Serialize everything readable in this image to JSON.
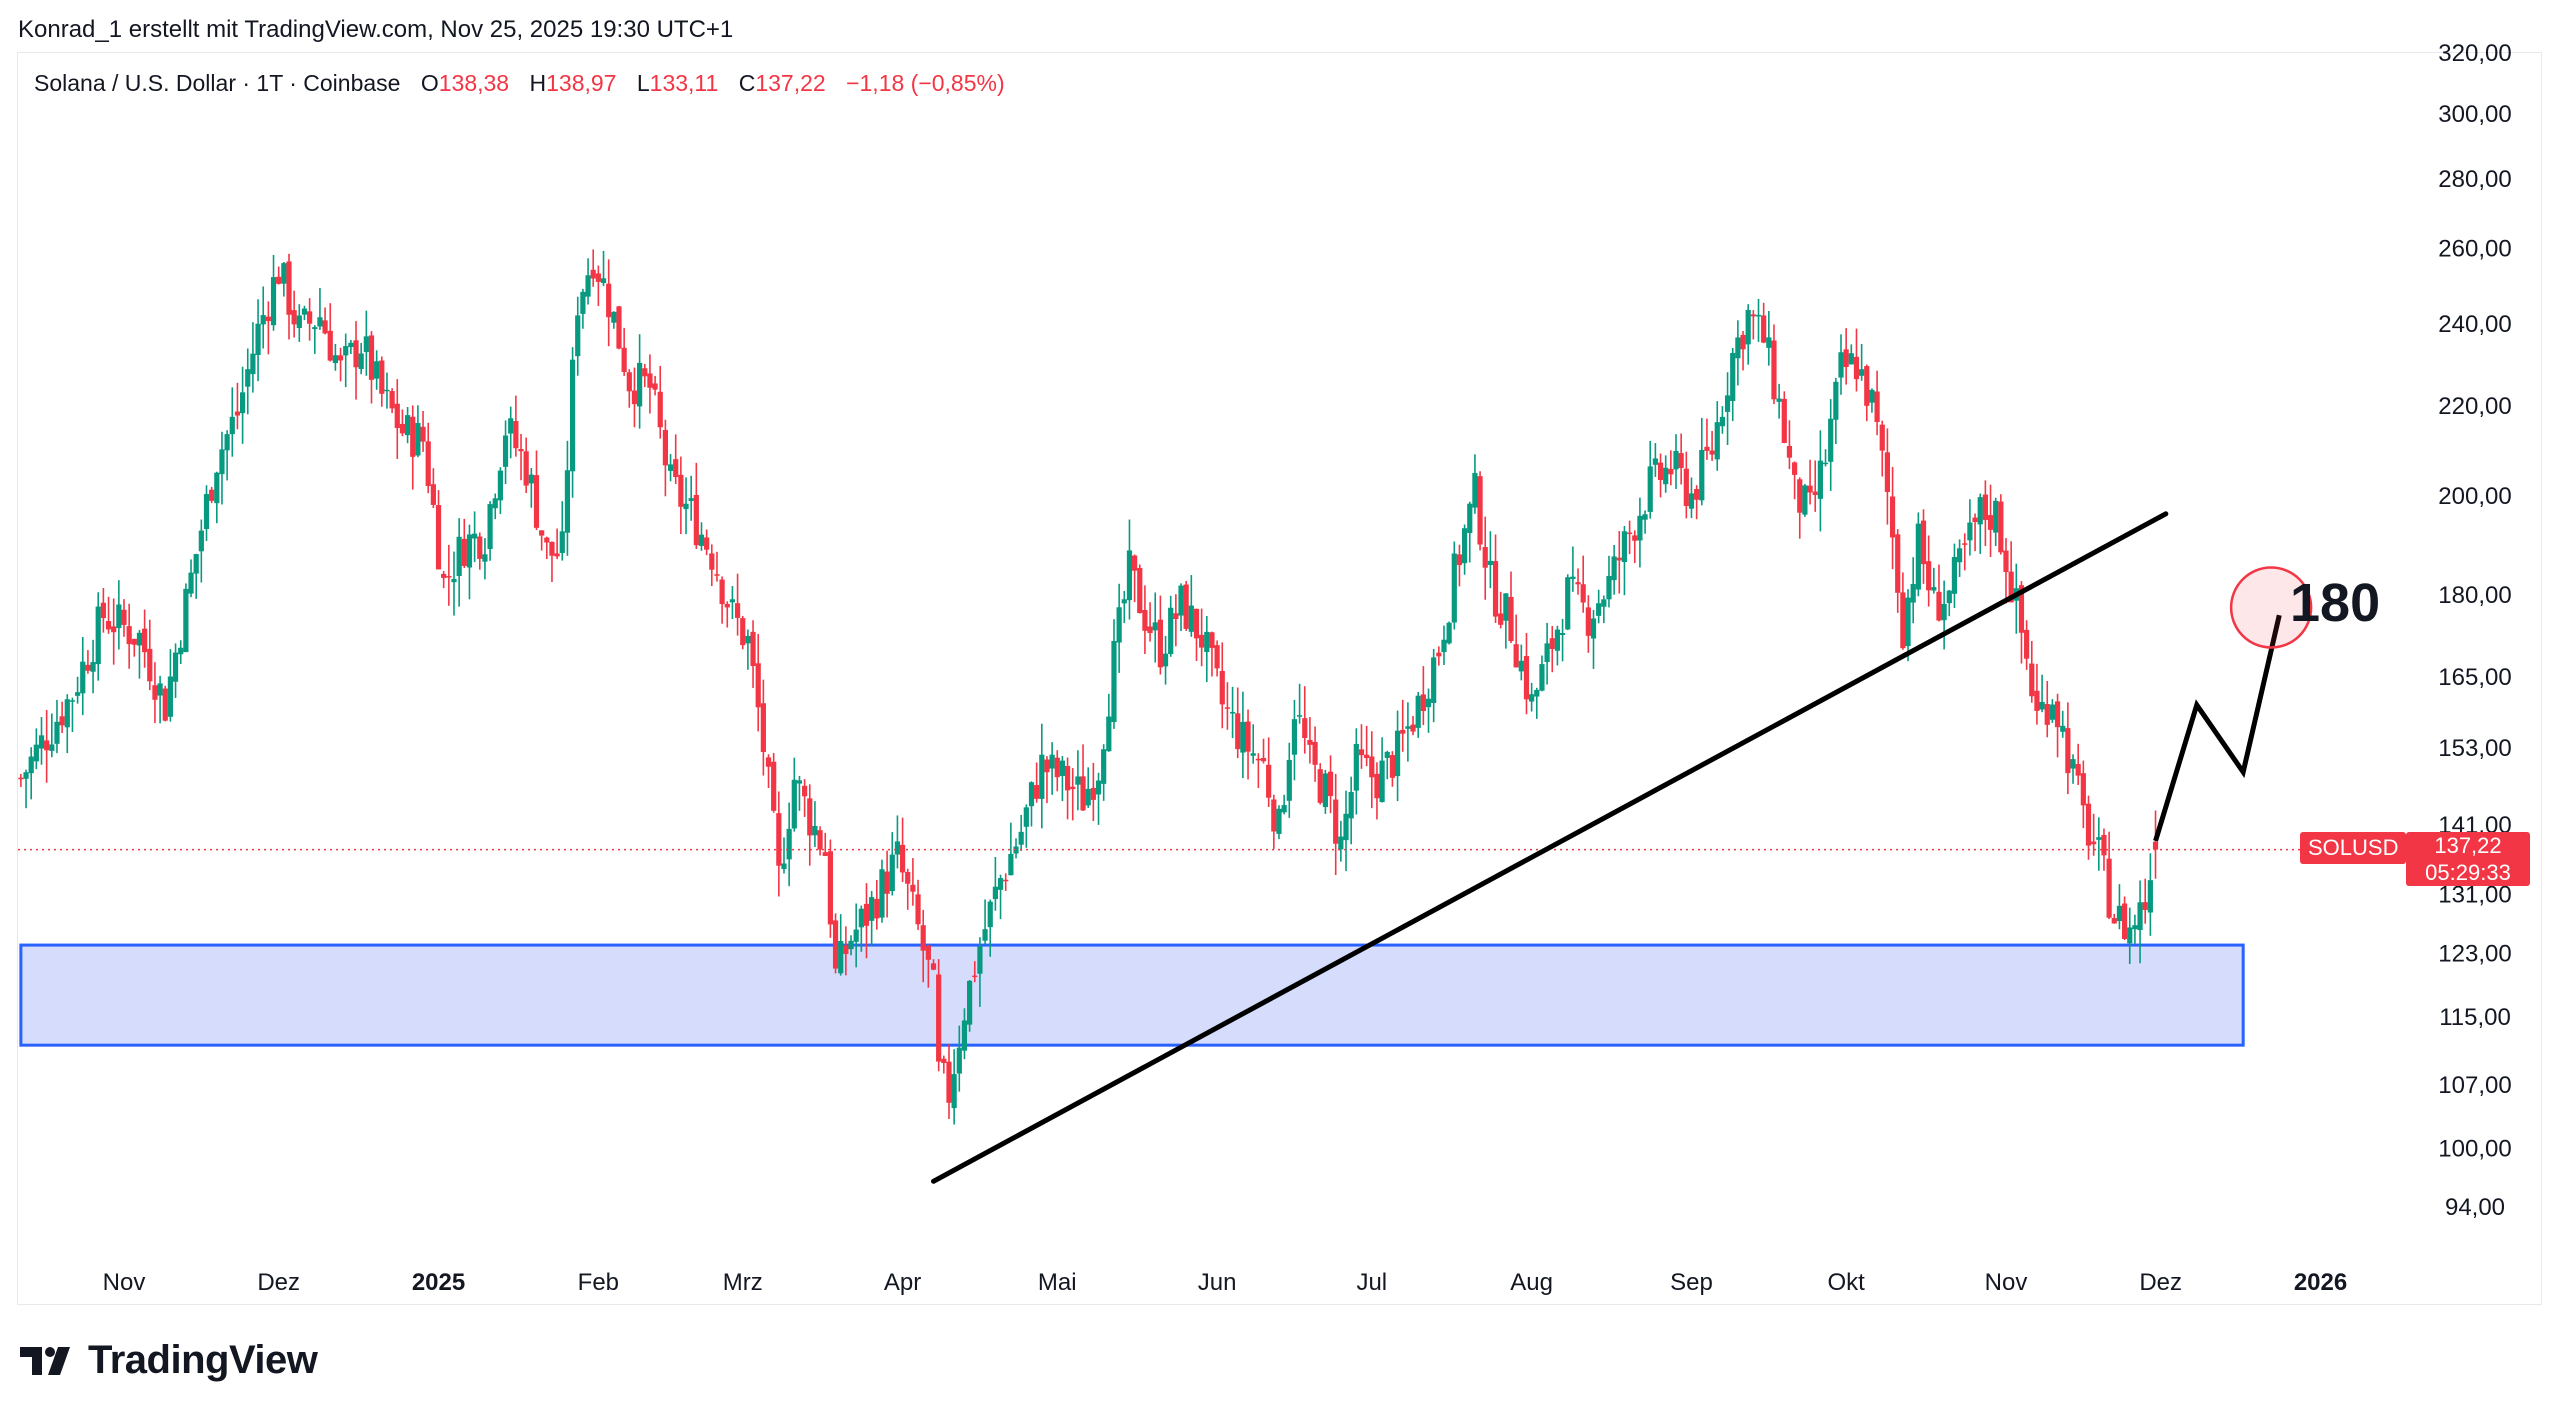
{
  "header": {
    "credit": "Konrad_1 erstellt mit TradingView.com, Nov 25, 2025 19:30 UTC+1"
  },
  "legend": {
    "title": "Solana / U.S. Dollar · 1T · Coinbase",
    "open_label": "O",
    "open": "138,38",
    "high_label": "H",
    "high": "138,97",
    "low_label": "L",
    "low": "133,11",
    "close_label": "C",
    "close": "137,22",
    "change": "−1,18 (−0,85%)"
  },
  "price_badge": {
    "symbol": "SOLUSD",
    "price": "137,22",
    "countdown": "05:29:33"
  },
  "annotation": {
    "target": "180"
  },
  "branding": {
    "logo_text": "TradingView"
  },
  "colors": {
    "up": "#089981",
    "down": "#f23645",
    "zone_fill": "#d6dcfb",
    "zone_border": "#2962ff",
    "line": "#000000"
  },
  "chart_data": {
    "type": "candlestick",
    "title": "Solana / U.S. Dollar · 1T · Coinbase",
    "scale": "log",
    "ylim": [
      88,
      322
    ],
    "y_ticks": [
      {
        "value": 320,
        "label": "320,00"
      },
      {
        "value": 300,
        "label": "300,00"
      },
      {
        "value": 280,
        "label": "280,00"
      },
      {
        "value": 260,
        "label": "260,00"
      },
      {
        "value": 240,
        "label": "240,00"
      },
      {
        "value": 220,
        "label": "220,00"
      },
      {
        "value": 200,
        "label": "200,00"
      },
      {
        "value": 180,
        "label": "180,00"
      },
      {
        "value": 165,
        "label": "165,00"
      },
      {
        "value": 153,
        "label": "153,00"
      },
      {
        "value": 141,
        "label": "141,00"
      },
      {
        "value": 131,
        "label": "131,00"
      },
      {
        "value": 123,
        "label": "123,00"
      },
      {
        "value": 115,
        "label": "115,00"
      },
      {
        "value": 107,
        "label": "107,00"
      },
      {
        "value": 100,
        "label": "100,00"
      },
      {
        "value": 94,
        "label": "94,00"
      }
    ],
    "x_ticks": [
      {
        "day": 0,
        "label": "Nov",
        "bold": false
      },
      {
        "day": 30,
        "label": "Dez",
        "bold": false
      },
      {
        "day": 61,
        "label": "2025",
        "bold": true
      },
      {
        "day": 92,
        "label": "Feb",
        "bold": false
      },
      {
        "day": 120,
        "label": "Mrz",
        "bold": false
      },
      {
        "day": 151,
        "label": "Apr",
        "bold": false
      },
      {
        "day": 181,
        "label": "Mai",
        "bold": false
      },
      {
        "day": 212,
        "label": "Jun",
        "bold": false
      },
      {
        "day": 242,
        "label": "Jul",
        "bold": false
      },
      {
        "day": 273,
        "label": "Aug",
        "bold": false
      },
      {
        "day": 304,
        "label": "Sep",
        "bold": false
      },
      {
        "day": 334,
        "label": "Okt",
        "bold": false
      },
      {
        "day": 365,
        "label": "Nov",
        "bold": false
      },
      {
        "day": 395,
        "label": "Dez",
        "bold": false
      },
      {
        "day": 426,
        "label": "2026",
        "bold": true
      }
    ],
    "x_domain": [
      -20,
      450
    ],
    "close_anchors": [
      [
        -20,
        148
      ],
      [
        -10,
        162
      ],
      [
        -4,
        176
      ],
      [
        3,
        172
      ],
      [
        8,
        160
      ],
      [
        13,
        183
      ],
      [
        18,
        208
      ],
      [
        22,
        218
      ],
      [
        26,
        238
      ],
      [
        30,
        254
      ],
      [
        34,
        238
      ],
      [
        38,
        242
      ],
      [
        42,
        228
      ],
      [
        46,
        235
      ],
      [
        50,
        222
      ],
      [
        54,
        214
      ],
      [
        58,
        212
      ],
      [
        62,
        182
      ],
      [
        66,
        190
      ],
      [
        70,
        192
      ],
      [
        74,
        215
      ],
      [
        78,
        206
      ],
      [
        82,
        188
      ],
      [
        85,
        188
      ],
      [
        88,
        246
      ],
      [
        91,
        258
      ],
      [
        94,
        246
      ],
      [
        98,
        226
      ],
      [
        102,
        224
      ],
      [
        106,
        202
      ],
      [
        110,
        196
      ],
      [
        114,
        188
      ],
      [
        118,
        176
      ],
      [
        121,
        171
      ],
      [
        124,
        153
      ],
      [
        127,
        133
      ],
      [
        130,
        148
      ],
      [
        133,
        142
      ],
      [
        136,
        137
      ],
      [
        138,
        120
      ],
      [
        141,
        125
      ],
      [
        144,
        128
      ],
      [
        147,
        132
      ],
      [
        150,
        136
      ],
      [
        154,
        126
      ],
      [
        157,
        118
      ],
      [
        158,
        108
      ],
      [
        160,
        106
      ],
      [
        163,
        116
      ],
      [
        166,
        124
      ],
      [
        170,
        133
      ],
      [
        174,
        140
      ],
      [
        178,
        150
      ],
      [
        182,
        148
      ],
      [
        186,
        145
      ],
      [
        189,
        150
      ],
      [
        192,
        168
      ],
      [
        195,
        184
      ],
      [
        198,
        176
      ],
      [
        201,
        170
      ],
      [
        205,
        178
      ],
      [
        209,
        172
      ],
      [
        213,
        160
      ],
      [
        217,
        154
      ],
      [
        221,
        150
      ],
      [
        224,
        140
      ],
      [
        227,
        160
      ],
      [
        230,
        150
      ],
      [
        233,
        146
      ],
      [
        236,
        138
      ],
      [
        239,
        150
      ],
      [
        243,
        148
      ],
      [
        247,
        152
      ],
      [
        251,
        160
      ],
      [
        255,
        170
      ],
      [
        259,
        188
      ],
      [
        262,
        200
      ],
      [
        265,
        182
      ],
      [
        269,
        174
      ],
      [
        273,
        160
      ],
      [
        276,
        168
      ],
      [
        280,
        180
      ],
      [
        284,
        176
      ],
      [
        288,
        182
      ],
      [
        292,
        192
      ],
      [
        296,
        202
      ],
      [
        300,
        206
      ],
      [
        304,
        200
      ],
      [
        308,
        210
      ],
      [
        312,
        232
      ],
      [
        315,
        242
      ],
      [
        318,
        236
      ],
      [
        321,
        220
      ],
      [
        324,
        200
      ],
      [
        327,
        196
      ],
      [
        330,
        208
      ],
      [
        333,
        228
      ],
      [
        336,
        230
      ],
      [
        339,
        220
      ],
      [
        342,
        200
      ],
      [
        345,
        174
      ],
      [
        348,
        190
      ],
      [
        351,
        178
      ],
      [
        354,
        180
      ],
      [
        357,
        188
      ],
      [
        360,
        196
      ],
      [
        363,
        196
      ],
      [
        366,
        182
      ],
      [
        369,
        168
      ],
      [
        371,
        158
      ],
      [
        374,
        162
      ],
      [
        377,
        152
      ],
      [
        380,
        142
      ],
      [
        383,
        136
      ],
      [
        386,
        128
      ],
      [
        389,
        126
      ],
      [
        392,
        130
      ],
      [
        394,
        137.22
      ]
    ],
    "trendline": {
      "from": {
        "day": 157,
        "price": 96.5
      },
      "to": {
        "day": 396,
        "price": 196
      }
    },
    "support_zone": {
      "top": 124,
      "bottom": 111.5,
      "from_day": -20,
      "to_day": 411
    },
    "projection": [
      {
        "day": 394,
        "price": 138.5
      },
      {
        "day": 402,
        "price": 160
      },
      {
        "day": 411,
        "price": 149
      },
      {
        "day": 418,
        "price": 176
      }
    ],
    "target": {
      "day": 417,
      "price": 178,
      "label": "180"
    },
    "last_price": 137.22
  }
}
